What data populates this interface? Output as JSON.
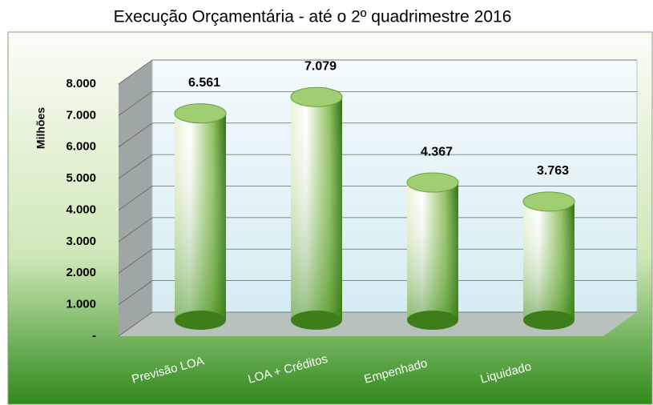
{
  "chart_data": {
    "type": "bar",
    "title": "Execução Orçamentária - até o 2º quadrimestre 2016",
    "y_label": "Milhões",
    "categories": [
      "Previsão LOA",
      "LOA + Créditos",
      "Empenhado",
      "Liquidado"
    ],
    "values": [
      6561,
      7079,
      4367,
      3763
    ],
    "value_labels": [
      "6.561",
      "7.079",
      "4.367",
      "3.763"
    ],
    "ylim": [
      0,
      8000
    ],
    "yticks": [
      {
        "value": 0,
        "label": "-"
      },
      {
        "value": 1000,
        "label": "1.000"
      },
      {
        "value": 2000,
        "label": "2.000"
      },
      {
        "value": 3000,
        "label": "3.000"
      },
      {
        "value": 4000,
        "label": "4.000"
      },
      {
        "value": 5000,
        "label": "5.000"
      },
      {
        "value": 6000,
        "label": "6.000"
      },
      {
        "value": 7000,
        "label": "7.000"
      },
      {
        "value": 8000,
        "label": "8.000"
      }
    ],
    "grid": true,
    "color": "#3f8a1c"
  }
}
